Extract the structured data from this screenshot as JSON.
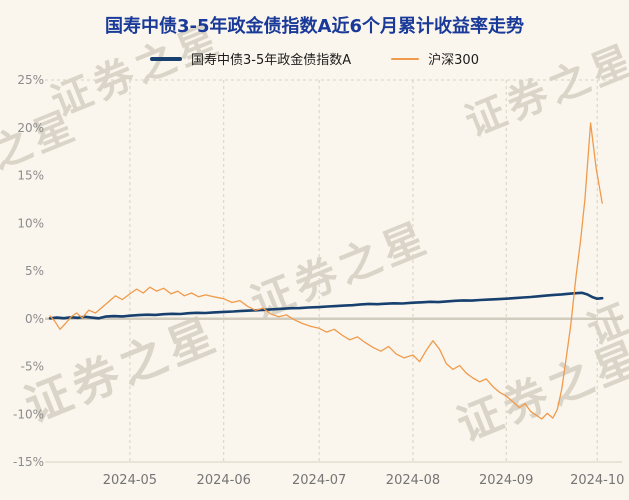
{
  "page": {
    "background": "#faf6ed",
    "title_color": "#1a3a99"
  },
  "title": "国寿中债3-5年政金债指数A近6个月累计收益率走势",
  "watermark": {
    "text": "证券之星"
  },
  "chart_data": {
    "type": "line",
    "title": "国寿中债3-5年政金债指数A近6个月累计收益率走势",
    "xlabel": "",
    "ylabel": "",
    "legend_position": "top",
    "ylim": [
      -15,
      25
    ],
    "yticks": [
      25,
      20,
      15,
      10,
      5,
      0,
      -5,
      -10,
      -15
    ],
    "ytick_suffix": "%",
    "xticks": [
      {
        "pos": 0.144,
        "label": "2024-05"
      },
      {
        "pos": 0.313,
        "label": "2024-06"
      },
      {
        "pos": 0.485,
        "label": "2024-07"
      },
      {
        "pos": 0.654,
        "label": "2024-08"
      },
      {
        "pos": 0.822,
        "label": "2024-09"
      },
      {
        "pos": 0.986,
        "label": "2024-10"
      }
    ],
    "axis": {
      "label_color": "#8c8c8c",
      "xlabel_color": "#757575",
      "grid_color": "#d8d2c3",
      "zero_line_color": "#d2ccbe",
      "axis_line_color": "#d8d2c3"
    },
    "series": [
      {
        "name": "国寿中债3-5年政金债指数A",
        "color": "#17406f",
        "width": 2.6,
        "points": [
          [
            0.0,
            0.05
          ],
          [
            0.012,
            0.12
          ],
          [
            0.025,
            0.06
          ],
          [
            0.038,
            0.15
          ],
          [
            0.05,
            0.1
          ],
          [
            0.063,
            0.2
          ],
          [
            0.075,
            0.12
          ],
          [
            0.088,
            0.05
          ],
          [
            0.1,
            0.22
          ],
          [
            0.115,
            0.28
          ],
          [
            0.13,
            0.25
          ],
          [
            0.144,
            0.32
          ],
          [
            0.16,
            0.38
          ],
          [
            0.175,
            0.42
          ],
          [
            0.19,
            0.4
          ],
          [
            0.205,
            0.48
          ],
          [
            0.22,
            0.52
          ],
          [
            0.235,
            0.5
          ],
          [
            0.25,
            0.58
          ],
          [
            0.265,
            0.62
          ],
          [
            0.28,
            0.6
          ],
          [
            0.295,
            0.66
          ],
          [
            0.313,
            0.72
          ],
          [
            0.33,
            0.76
          ],
          [
            0.345,
            0.82
          ],
          [
            0.36,
            0.85
          ],
          [
            0.375,
            0.9
          ],
          [
            0.39,
            0.95
          ],
          [
            0.405,
            1.0
          ],
          [
            0.42,
            1.05
          ],
          [
            0.435,
            1.1
          ],
          [
            0.45,
            1.12
          ],
          [
            0.465,
            1.18
          ],
          [
            0.485,
            1.22
          ],
          [
            0.5,
            1.28
          ],
          [
            0.515,
            1.32
          ],
          [
            0.53,
            1.38
          ],
          [
            0.545,
            1.42
          ],
          [
            0.56,
            1.5
          ],
          [
            0.575,
            1.55
          ],
          [
            0.59,
            1.52
          ],
          [
            0.605,
            1.58
          ],
          [
            0.62,
            1.62
          ],
          [
            0.635,
            1.6
          ],
          [
            0.654,
            1.68
          ],
          [
            0.67,
            1.72
          ],
          [
            0.685,
            1.78
          ],
          [
            0.7,
            1.74
          ],
          [
            0.715,
            1.82
          ],
          [
            0.73,
            1.88
          ],
          [
            0.745,
            1.92
          ],
          [
            0.76,
            1.9
          ],
          [
            0.775,
            1.96
          ],
          [
            0.79,
            2.0
          ],
          [
            0.805,
            2.05
          ],
          [
            0.822,
            2.1
          ],
          [
            0.838,
            2.16
          ],
          [
            0.852,
            2.22
          ],
          [
            0.866,
            2.28
          ],
          [
            0.88,
            2.35
          ],
          [
            0.894,
            2.42
          ],
          [
            0.908,
            2.5
          ],
          [
            0.922,
            2.55
          ],
          [
            0.936,
            2.62
          ],
          [
            0.948,
            2.68
          ],
          [
            0.958,
            2.72
          ],
          [
            0.968,
            2.55
          ],
          [
            0.978,
            2.25
          ],
          [
            0.986,
            2.1
          ],
          [
            0.995,
            2.15
          ]
        ]
      },
      {
        "name": "沪深300",
        "color": "#f09a4c",
        "width": 1.3,
        "points": [
          [
            0.0,
            0.3
          ],
          [
            0.008,
            -0.2
          ],
          [
            0.018,
            -1.1
          ],
          [
            0.028,
            -0.5
          ],
          [
            0.038,
            0.2
          ],
          [
            0.048,
            0.6
          ],
          [
            0.058,
            0.1
          ],
          [
            0.07,
            0.9
          ],
          [
            0.082,
            0.6
          ],
          [
            0.094,
            1.2
          ],
          [
            0.106,
            1.8
          ],
          [
            0.118,
            2.4
          ],
          [
            0.13,
            2.0
          ],
          [
            0.144,
            2.6
          ],
          [
            0.156,
            3.1
          ],
          [
            0.168,
            2.7
          ],
          [
            0.18,
            3.3
          ],
          [
            0.192,
            2.9
          ],
          [
            0.205,
            3.2
          ],
          [
            0.218,
            2.6
          ],
          [
            0.23,
            2.9
          ],
          [
            0.242,
            2.4
          ],
          [
            0.255,
            2.7
          ],
          [
            0.268,
            2.3
          ],
          [
            0.28,
            2.5
          ],
          [
            0.295,
            2.3
          ],
          [
            0.313,
            2.1
          ],
          [
            0.328,
            1.7
          ],
          [
            0.342,
            1.9
          ],
          [
            0.356,
            1.3
          ],
          [
            0.37,
            0.9
          ],
          [
            0.384,
            1.1
          ],
          [
            0.398,
            0.5
          ],
          [
            0.412,
            0.2
          ],
          [
            0.426,
            0.4
          ],
          [
            0.44,
            -0.1
          ],
          [
            0.455,
            -0.5
          ],
          [
            0.47,
            -0.8
          ],
          [
            0.485,
            -1.0
          ],
          [
            0.498,
            -1.4
          ],
          [
            0.512,
            -1.1
          ],
          [
            0.526,
            -1.7
          ],
          [
            0.54,
            -2.2
          ],
          [
            0.554,
            -1.9
          ],
          [
            0.568,
            -2.5
          ],
          [
            0.582,
            -3.0
          ],
          [
            0.596,
            -3.4
          ],
          [
            0.61,
            -2.9
          ],
          [
            0.624,
            -3.7
          ],
          [
            0.638,
            -4.1
          ],
          [
            0.654,
            -3.8
          ],
          [
            0.666,
            -4.5
          ],
          [
            0.678,
            -3.3
          ],
          [
            0.69,
            -2.3
          ],
          [
            0.702,
            -3.2
          ],
          [
            0.714,
            -4.7
          ],
          [
            0.726,
            -5.3
          ],
          [
            0.738,
            -4.9
          ],
          [
            0.75,
            -5.7
          ],
          [
            0.762,
            -6.2
          ],
          [
            0.774,
            -6.6
          ],
          [
            0.786,
            -6.3
          ],
          [
            0.798,
            -7.1
          ],
          [
            0.81,
            -7.7
          ],
          [
            0.822,
            -8.1
          ],
          [
            0.834,
            -8.7
          ],
          [
            0.846,
            -9.3
          ],
          [
            0.856,
            -8.9
          ],
          [
            0.866,
            -9.7
          ],
          [
            0.876,
            -10.1
          ],
          [
            0.886,
            -10.5
          ],
          [
            0.896,
            -9.9
          ],
          [
            0.906,
            -10.4
          ],
          [
            0.914,
            -9.5
          ],
          [
            0.922,
            -7.4
          ],
          [
            0.93,
            -4.2
          ],
          [
            0.938,
            -0.8
          ],
          [
            0.948,
            4.5
          ],
          [
            0.956,
            8.2
          ],
          [
            0.964,
            12.6
          ],
          [
            0.974,
            20.5
          ],
          [
            0.984,
            15.8
          ],
          [
            0.995,
            12.1
          ]
        ]
      }
    ]
  }
}
